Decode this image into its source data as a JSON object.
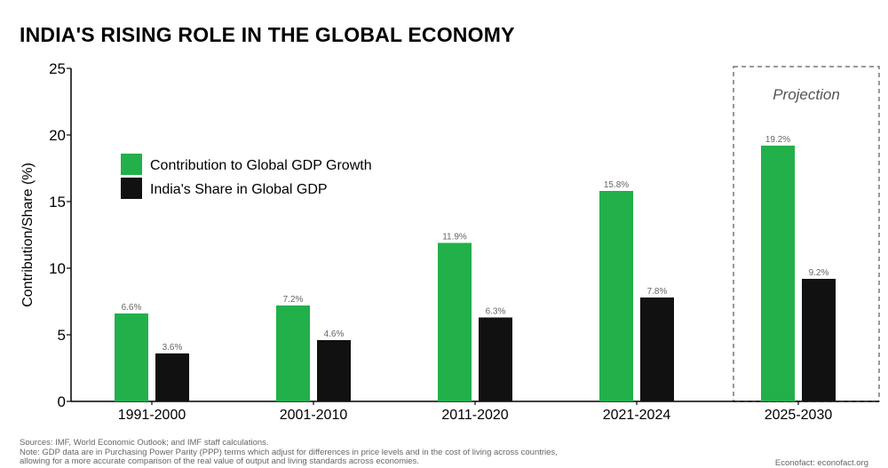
{
  "title": "INDIA'S RISING ROLE IN THE GLOBAL ECONOMY",
  "colors": {
    "green": "#22b04b",
    "black": "#111111",
    "projection_border": "#777777"
  },
  "chart_data": {
    "type": "bar",
    "title": "INDIA'S RISING ROLE IN THE GLOBAL ECONOMY",
    "ylabel": "Contribution/Share (%)",
    "xlabel": "",
    "ylim": [
      0,
      25
    ],
    "yticks": [
      0,
      5,
      10,
      15,
      20,
      25
    ],
    "categories": [
      "1991-2000",
      "2001-2010",
      "2011-2020",
      "2021-2024",
      "2025-2030"
    ],
    "series": [
      {
        "name": "Contribution to Global GDP Growth",
        "color": "#22b04b",
        "values": [
          6.6,
          7.2,
          11.9,
          15.8,
          19.2
        ],
        "labels": [
          "6.6%",
          "7.2%",
          "11.9%",
          "15.8%",
          "19.2%"
        ]
      },
      {
        "name": "India's Share in Global GDP",
        "color": "#111111",
        "values": [
          3.6,
          4.6,
          6.3,
          7.8,
          9.2
        ],
        "labels": [
          "3.6%",
          "4.6%",
          "6.3%",
          "7.8%",
          "9.2%"
        ]
      }
    ],
    "annotation": {
      "text": "Projection",
      "category": "2025-2030"
    },
    "legend_position": "upper-left",
    "grid": false
  },
  "footer": {
    "sources": "Sources: IMF, World Economic Outlook; and IMF staff calculations.",
    "note_line1": "Note: GDP data are in Purchasing Power Parity (PPP) terms which adjust for differences in price levels and in the cost of living across countries,",
    "note_line2": "allowing for a more accurate comparison of the real value of output and living standards across economies.",
    "credit": "Econofact: econofact.org"
  }
}
